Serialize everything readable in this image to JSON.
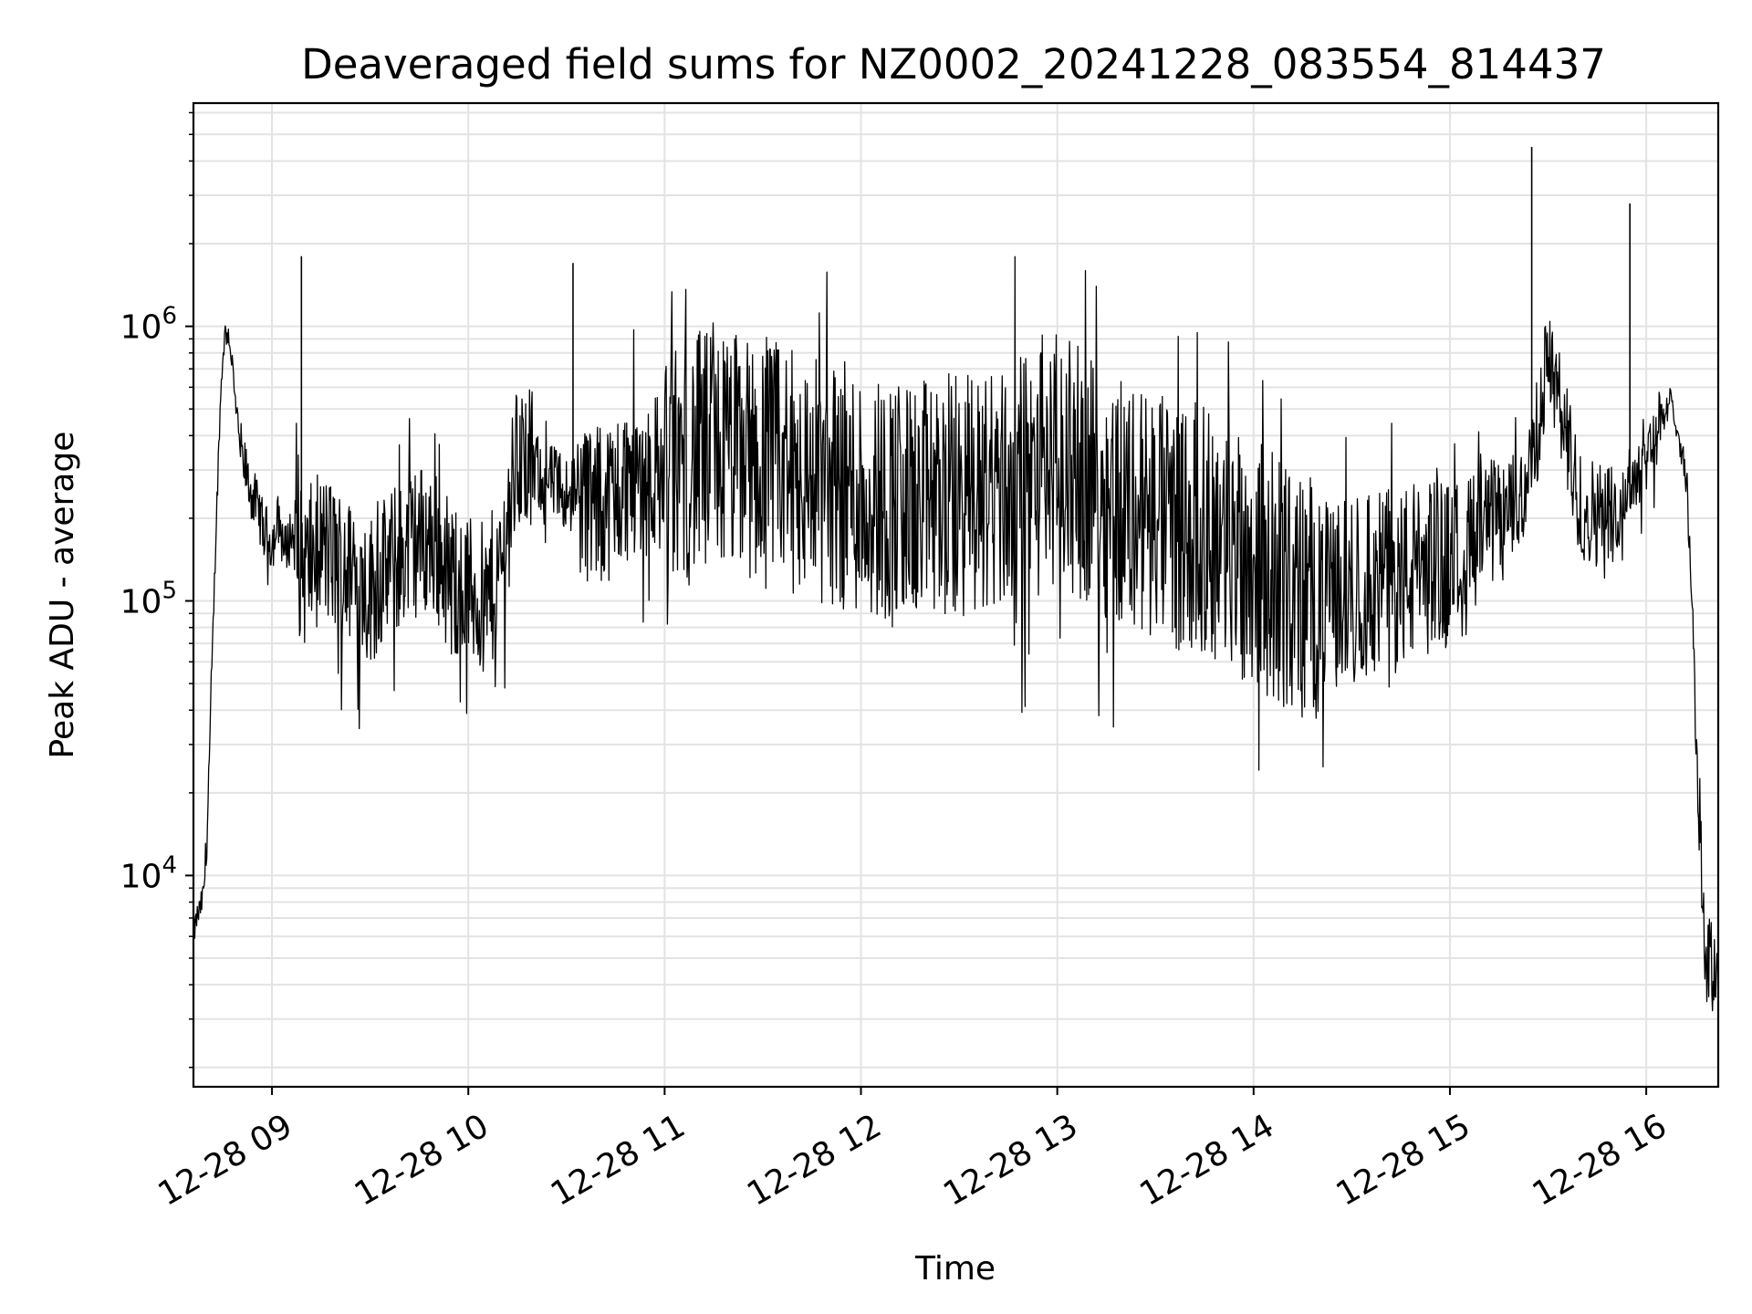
{
  "chart_data": {
    "type": "line",
    "title": "Deaveraged field sums for NZ0002_20241228_083554_814437",
    "xlabel": "Time",
    "ylabel": "Peak ADU - average",
    "yscale": "log",
    "grid": true,
    "line_color": "#000000",
    "xlim": [
      "2024-12-28 08:36",
      "2024-12-28 16:22"
    ],
    "ylim": [
      1700,
      6500000
    ],
    "x_ticks": [
      "12-28 09",
      "12-28 10",
      "12-28 11",
      "12-28 12",
      "12-28 13",
      "12-28 14",
      "12-28 15",
      "12-28 16"
    ],
    "y_ticks": [
      {
        "base": "10",
        "exp": "4",
        "value": 10000
      },
      {
        "base": "10",
        "exp": "5",
        "value": 100000
      },
      {
        "base": "10",
        "exp": "6",
        "value": 1000000
      }
    ],
    "series": [
      {
        "x": [
          "2024-12-28 08:36",
          "2024-12-28 08:37",
          "2024-12-28 08:38",
          "2024-12-28 08:39",
          "2024-12-28 08:40",
          "2024-12-28 08:41",
          "2024-12-28 08:42",
          "2024-12-28 08:43",
          "2024-12-28 08:44",
          "2024-12-28 08:45",
          "2024-12-28 08:46",
          "2024-12-28 08:47",
          "2024-12-28 08:48",
          "2024-12-28 08:49",
          "2024-12-28 08:50",
          "2024-12-28 08:51",
          "2024-12-28 08:52",
          "2024-12-28 08:53",
          "2024-12-28 08:54",
          "2024-12-28 08:55",
          "2024-12-28 08:56",
          "2024-12-28 08:57",
          "2024-12-28 08:58",
          "2024-12-28 08:59",
          "2024-12-28 09:00",
          "2024-12-28 09:02",
          "2024-12-28 09:04",
          "2024-12-28 09:06",
          "2024-12-28 09:08",
          "2024-12-28 09:10",
          "2024-12-28 09:15",
          "2024-12-28 09:20",
          "2024-12-28 09:25",
          "2024-12-28 09:30",
          "2024-12-28 09:35",
          "2024-12-28 09:40",
          "2024-12-28 09:45",
          "2024-12-28 09:50",
          "2024-12-28 09:55",
          "2024-12-28 10:00",
          "2024-12-28 10:05",
          "2024-12-28 10:10",
          "2024-12-28 10:15",
          "2024-12-28 10:20",
          "2024-12-28 10:30",
          "2024-12-28 10:40",
          "2024-12-28 10:50",
          "2024-12-28 11:00",
          "2024-12-28 11:15",
          "2024-12-28 11:30",
          "2024-12-28 11:45",
          "2024-12-28 12:00",
          "2024-12-28 12:15",
          "2024-12-28 12:30",
          "2024-12-28 12:45",
          "2024-12-28 13:00",
          "2024-12-28 13:15",
          "2024-12-28 13:30",
          "2024-12-28 13:45",
          "2024-12-28 14:00",
          "2024-12-28 14:15",
          "2024-12-28 14:30",
          "2024-12-28 14:45",
          "2024-12-28 15:00",
          "2024-12-28 15:10",
          "2024-12-28 15:20",
          "2024-12-28 15:25",
          "2024-12-28 15:30",
          "2024-12-28 15:40",
          "2024-12-28 15:50",
          "2024-12-28 16:00",
          "2024-12-28 16:05",
          "2024-12-28 16:08",
          "2024-12-28 16:10",
          "2024-12-28 16:12",
          "2024-12-28 16:14",
          "2024-12-28 16:16",
          "2024-12-28 16:18",
          "2024-12-28 16:20",
          "2024-12-28 16:22"
        ],
        "values": [
          6000,
          7000,
          7500,
          8500,
          12000,
          30000,
          80000,
          200000,
          450000,
          800000,
          1000000,
          900000,
          700000,
          500000,
          400000,
          320000,
          300000,
          260000,
          240000,
          230000,
          210000,
          190000,
          180000,
          170000,
          160000,
          200000,
          150000,
          180000,
          140000,
          130000,
          160000,
          140000,
          120000,
          110000,
          130000,
          150000,
          170000,
          160000,
          120000,
          110000,
          100000,
          130000,
          350000,
          300000,
          250000,
          220000,
          280000,
          300000,
          350000,
          320000,
          280000,
          250000,
          220000,
          240000,
          260000,
          330000,
          250000,
          200000,
          180000,
          140000,
          100000,
          110000,
          120000,
          150000,
          180000,
          220000,
          300000,
          800000,
          220000,
          200000,
          350000,
          450000,
          550000,
          400000,
          300000,
          100000,
          20000,
          5000,
          4500,
          5000
        ]
      }
    ],
    "spikes": [
      {
        "x": "2024-12-28 09:09",
        "y": 1800000
      },
      {
        "x": "2024-12-28 10:32",
        "y": 1700000
      },
      {
        "x": "2024-12-28 15:25",
        "y": 4500000
      },
      {
        "x": "2024-12-28 15:55",
        "y": 2800000
      }
    ]
  }
}
